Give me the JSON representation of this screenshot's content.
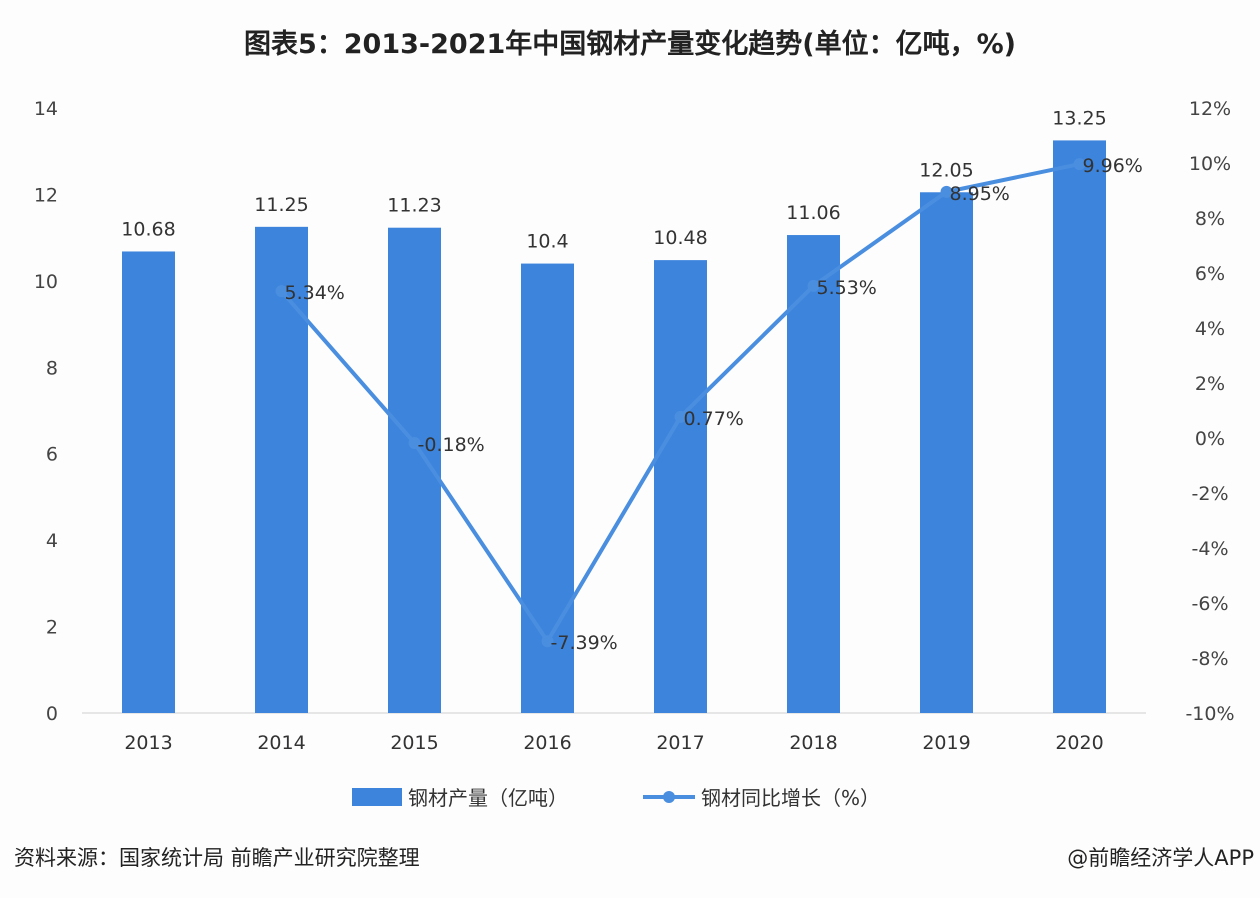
{
  "title": "图表5：2013-2021年中国钢材产量变化趋势(单位：亿吨，%)",
  "source": "资料来源：国家统计局 前瞻产业研究院整理",
  "credit": "@前瞻经济学人APP",
  "colors": {
    "bar": "#3d84dc",
    "line": "#4a8ee0"
  },
  "chart_data": {
    "type": "bar+line",
    "categories": [
      "2013",
      "2014",
      "2015",
      "2016",
      "2017",
      "2018",
      "2019",
      "2020"
    ],
    "series": [
      {
        "name": "钢材产量（亿吨）",
        "type": "bar",
        "axis": "left",
        "values": [
          10.68,
          11.25,
          11.23,
          10.4,
          10.48,
          11.06,
          12.05,
          13.25
        ],
        "labels": [
          "10.68",
          "11.25",
          "11.23",
          "10.4",
          "10.48",
          "11.06",
          "12.05",
          "13.25"
        ]
      },
      {
        "name": "钢材同比增长（%）",
        "type": "line",
        "axis": "right",
        "values": [
          null,
          5.34,
          -0.18,
          -7.39,
          0.77,
          5.53,
          8.95,
          9.96
        ],
        "labels": [
          "",
          "5.34%",
          "-0.18%",
          "-7.39%",
          "0.77%",
          "5.53%",
          "8.95%",
          "9.96%"
        ]
      }
    ],
    "y_left": {
      "lim": [
        0,
        14
      ],
      "ticks": [
        "0",
        "2",
        "4",
        "6",
        "8",
        "10",
        "12",
        "14"
      ]
    },
    "y_right": {
      "lim": [
        -10,
        12
      ],
      "ticks": [
        "-10%",
        "-8%",
        "-6%",
        "-4%",
        "-2%",
        "0%",
        "2%",
        "4%",
        "6%",
        "8%",
        "10%",
        "12%"
      ]
    },
    "grid": false,
    "legend": "bottom"
  }
}
